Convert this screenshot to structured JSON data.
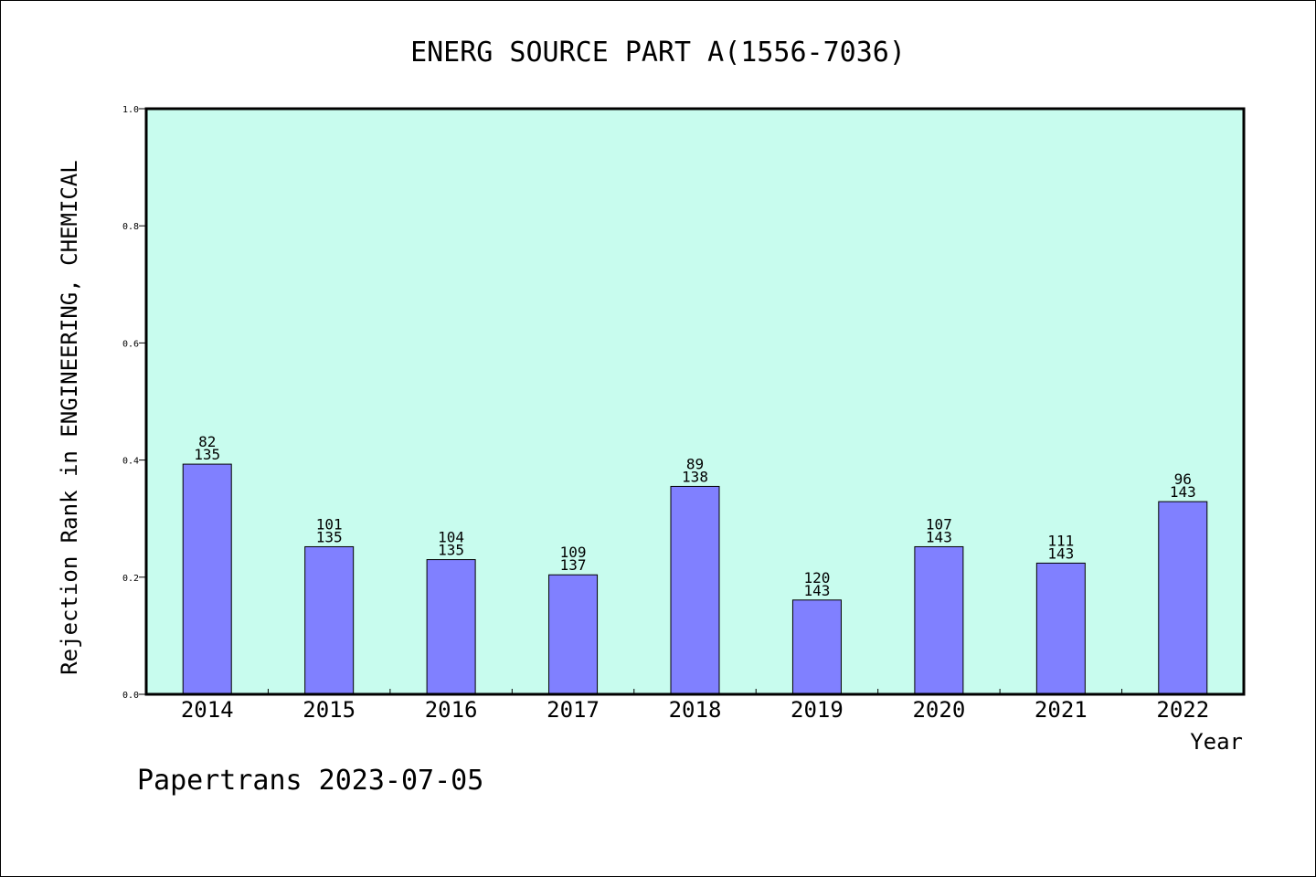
{
  "chart_data": {
    "type": "bar",
    "title": "ENERG SOURCE PART A(1556-7036)",
    "xlabel": "Year",
    "ylabel": "Rejection Rank in ENGINEERING, CHEMICAL",
    "ylim": [
      0,
      1.0
    ],
    "yticks": [
      "0.0",
      "0.2",
      "0.4",
      "0.6",
      "0.8",
      "1.0"
    ],
    "categories": [
      "2014",
      "2015",
      "2016",
      "2017",
      "2018",
      "2019",
      "2020",
      "2021",
      "2022"
    ],
    "values": [
      0.393,
      0.252,
      0.23,
      0.204,
      0.355,
      0.161,
      0.252,
      0.224,
      0.329
    ],
    "rank": [
      "82",
      "101",
      "104",
      "109",
      "89",
      "120",
      "107",
      "111",
      "96"
    ],
    "total": [
      "135",
      "135",
      "135",
      "137",
      "138",
      "143",
      "143",
      "143",
      "143"
    ],
    "grid": false,
    "colors": {
      "plot_background": "#c8fcee",
      "bar_fill": "#8080ff",
      "bar_stroke": "#000000"
    }
  },
  "footer": "Papertrans 2023-07-05"
}
